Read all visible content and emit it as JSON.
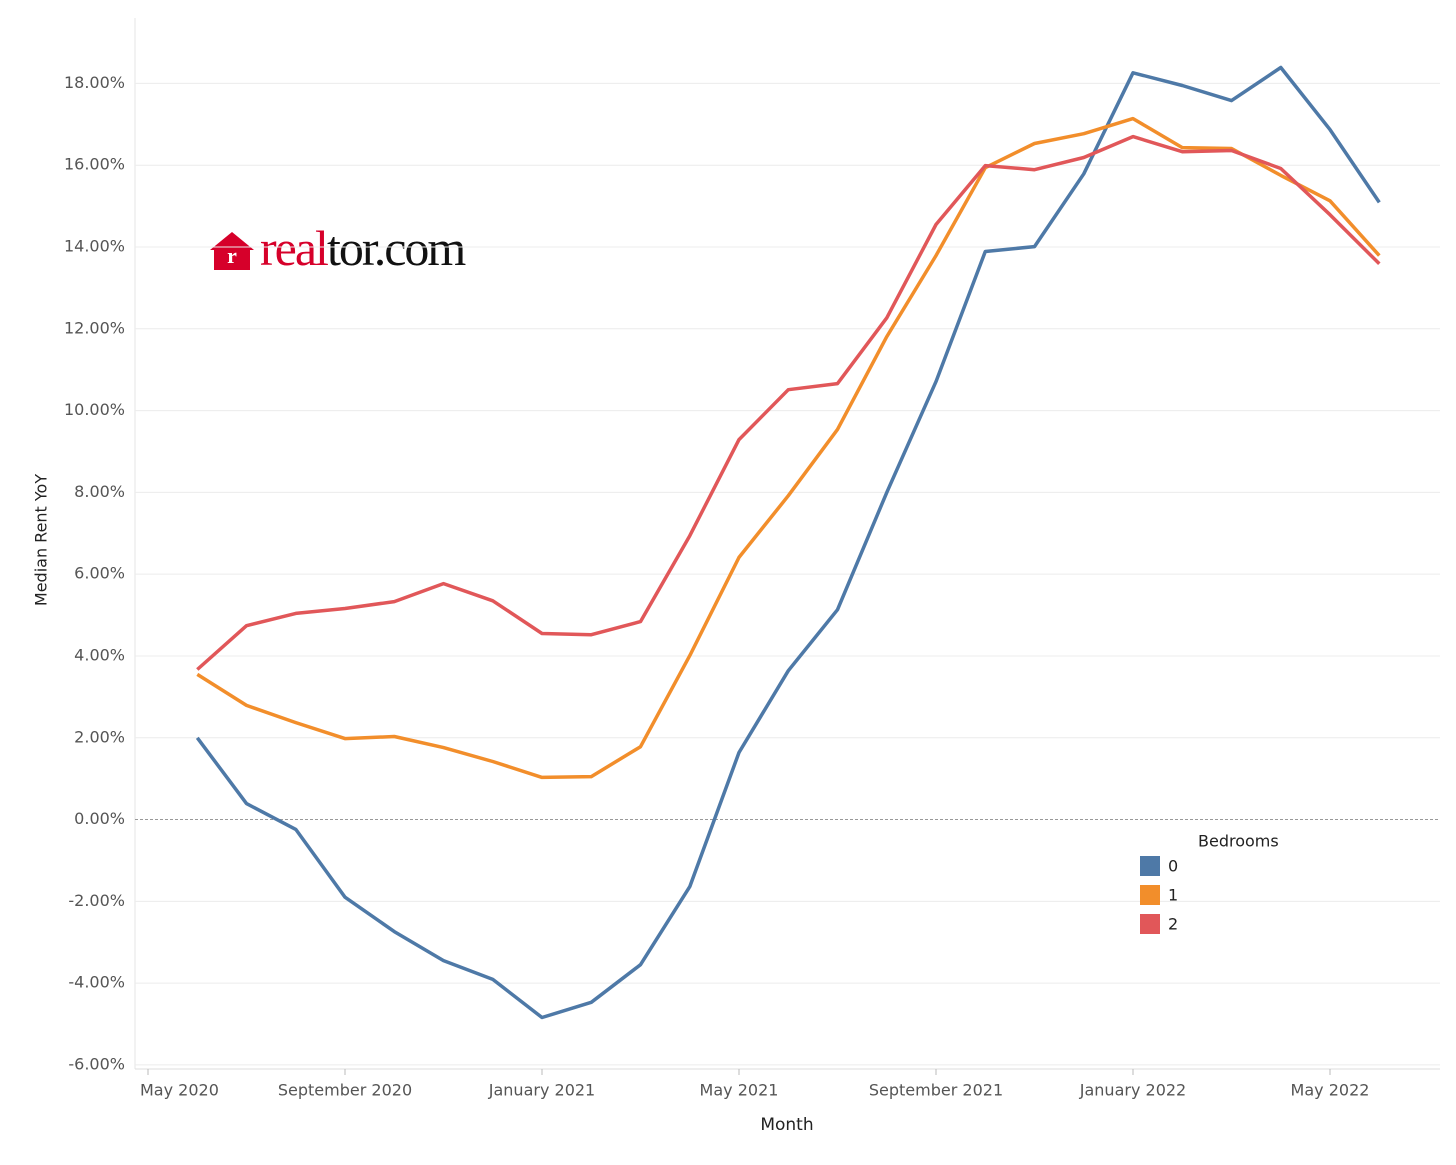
{
  "chart_data": {
    "type": "line",
    "logo": {
      "icon": "r",
      "part_red": "real",
      "part_dark": "tor.com"
    },
    "x_label": "Month",
    "y_label": "Median Rent YoY",
    "x": [
      "2020-06",
      "2020-07",
      "2020-08",
      "2020-09",
      "2020-10",
      "2020-11",
      "2020-12",
      "2021-01",
      "2021-02",
      "2021-03",
      "2021-04",
      "2021-05",
      "2021-06",
      "2021-07",
      "2021-08",
      "2021-09",
      "2021-10",
      "2021-11",
      "2021-12",
      "2022-01",
      "2022-02",
      "2022-03",
      "2022-04",
      "2022-05",
      "2022-06"
    ],
    "xticks": [
      {
        "value": "2020-05",
        "label": "May 2020"
      },
      {
        "value": "2020-09",
        "label": "September 2020"
      },
      {
        "value": "2021-01",
        "label": "January 2021"
      },
      {
        "value": "2021-05",
        "label": "May 2021"
      },
      {
        "value": "2021-09",
        "label": "September 2021"
      },
      {
        "value": "2022-01",
        "label": "January 2022"
      },
      {
        "value": "2022-05",
        "label": "May 2022"
      }
    ],
    "ylim": [
      -6.1,
      19.6
    ],
    "yticks": [
      {
        "value": -6,
        "label": "-6.00%"
      },
      {
        "value": -4,
        "label": "-4.00%"
      },
      {
        "value": -2,
        "label": "-2.00%"
      },
      {
        "value": 0,
        "label": "0.00%"
      },
      {
        "value": 2,
        "label": "2.00%"
      },
      {
        "value": 4,
        "label": "4.00%"
      },
      {
        "value": 6,
        "label": "6.00%"
      },
      {
        "value": 8,
        "label": "8.00%"
      },
      {
        "value": 10,
        "label": "10.00%"
      },
      {
        "value": 12,
        "label": "12.00%"
      },
      {
        "value": 14,
        "label": "14.00%"
      },
      {
        "value": 16,
        "label": "16.00%"
      },
      {
        "value": 18,
        "label": "18.00%"
      }
    ],
    "grid": true,
    "legend_title": "Bedrooms",
    "series": [
      {
        "name": "0",
        "color": "#4e79a7",
        "values": [
          2.0,
          0.39,
          -0.24,
          -1.9,
          -2.74,
          -3.45,
          -3.91,
          -4.84,
          -4.47,
          -3.55,
          -1.64,
          1.64,
          3.64,
          5.13,
          8.0,
          10.71,
          13.89,
          14.01,
          15.79,
          18.26,
          17.95,
          17.58,
          18.39,
          16.87,
          15.09
        ]
      },
      {
        "name": "1",
        "color": "#f28e2b",
        "values": [
          3.55,
          2.79,
          2.37,
          1.98,
          2.03,
          1.76,
          1.42,
          1.03,
          1.05,
          1.78,
          4.01,
          6.41,
          7.92,
          9.54,
          11.81,
          13.79,
          15.94,
          16.53,
          16.77,
          17.14,
          16.43,
          16.41,
          15.75,
          15.13,
          13.79
        ]
      },
      {
        "name": "2",
        "color": "#e15759",
        "values": [
          3.67,
          4.74,
          5.04,
          5.16,
          5.33,
          5.77,
          5.35,
          4.55,
          4.52,
          4.84,
          6.94,
          9.29,
          10.51,
          10.66,
          12.27,
          14.55,
          15.99,
          15.89,
          16.19,
          16.7,
          16.33,
          16.36,
          15.92,
          14.79,
          13.59
        ]
      }
    ]
  }
}
